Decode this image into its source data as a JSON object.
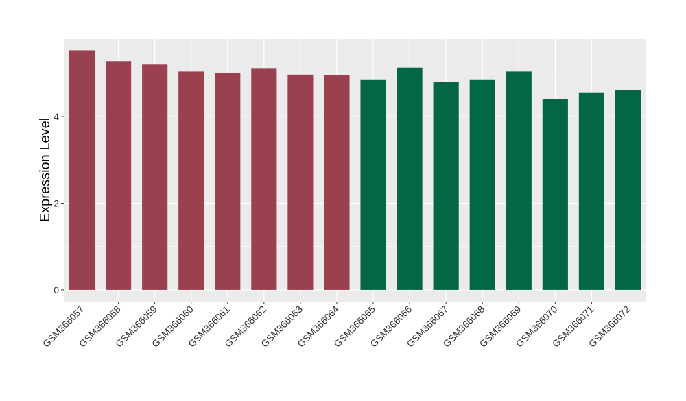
{
  "chart_data": {
    "type": "bar",
    "title": "",
    "xlabel": "",
    "ylabel": "Expression Level",
    "ylim": [
      -0.27,
      5.79
    ],
    "yticks": [
      0,
      2,
      4
    ],
    "grid": true,
    "categories": [
      "GSM366057",
      "GSM366058",
      "GSM366059",
      "GSM366060",
      "GSM366061",
      "GSM366062",
      "GSM366063",
      "GSM366064",
      "GSM366065",
      "GSM366066",
      "GSM366067",
      "GSM366068",
      "GSM366069",
      "GSM366070",
      "GSM366071",
      "GSM366072"
    ],
    "values": [
      5.53,
      5.28,
      5.2,
      5.04,
      5.0,
      5.12,
      4.97,
      4.96,
      4.86,
      5.13,
      4.8,
      4.86,
      5.04,
      4.4,
      4.56,
      4.61
    ],
    "group_colors": [
      "#9a4150",
      "#9a4150",
      "#9a4150",
      "#9a4150",
      "#9a4150",
      "#9a4150",
      "#9a4150",
      "#9a4150",
      "#036645",
      "#036645",
      "#036645",
      "#036645",
      "#036645",
      "#036645",
      "#036645",
      "#036645"
    ],
    "panel_background": "#ebebeb"
  }
}
